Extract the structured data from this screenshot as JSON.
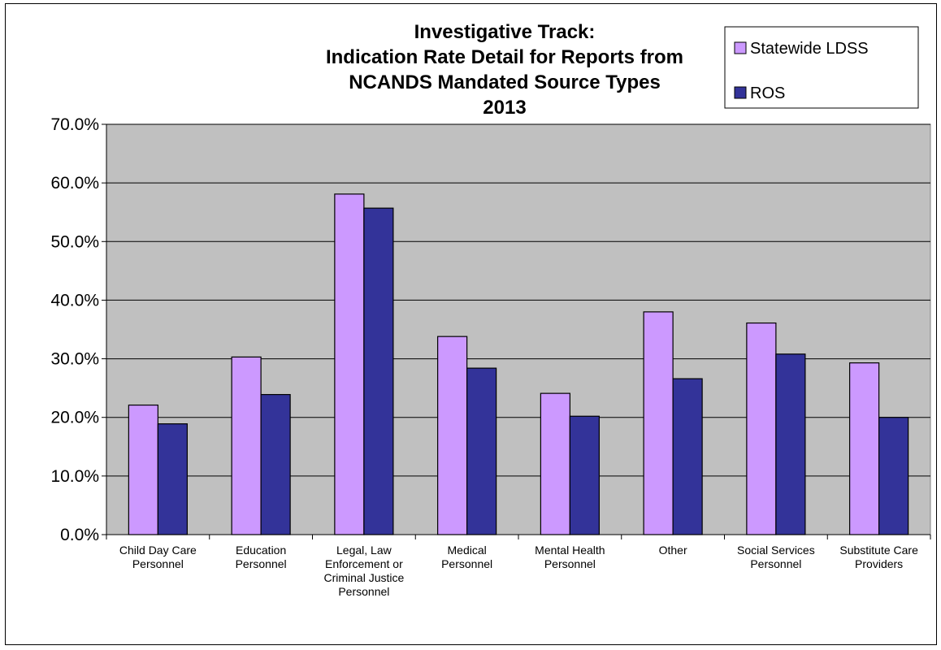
{
  "chart_data": {
    "type": "bar",
    "title_lines": [
      "Investigative Track:",
      "Indication Rate Detail for Reports from",
      "NCANDS Mandated Source Types",
      "2013"
    ],
    "categories": [
      [
        "Child Day Care",
        "Personnel"
      ],
      [
        "Education",
        "Personnel"
      ],
      [
        "Legal, Law",
        "Enforcement or",
        "Criminal Justice",
        "Personnel"
      ],
      [
        "Medical",
        "Personnel"
      ],
      [
        "Mental Health",
        "Personnel"
      ],
      [
        "Other"
      ],
      [
        "Social Services",
        "Personnel"
      ],
      [
        "Substitute Care",
        "Providers"
      ]
    ],
    "series": [
      {
        "name": "Statewide LDSS",
        "color": "#CC99FF",
        "values": [
          22.1,
          30.3,
          58.1,
          33.8,
          24.1,
          38.0,
          36.1,
          29.3
        ]
      },
      {
        "name": "ROS",
        "color": "#333399",
        "values": [
          18.9,
          23.9,
          55.7,
          28.4,
          20.2,
          26.6,
          30.8,
          20.0
        ]
      }
    ],
    "ylim": [
      0,
      70
    ],
    "yticks": [
      "0.0%",
      "10.0%",
      "20.0%",
      "30.0%",
      "40.0%",
      "50.0%",
      "60.0%",
      "70.0%"
    ],
    "xlabel": "",
    "ylabel": "",
    "grid": true,
    "plot_background": "#C0C0C0",
    "legend_position": "top-right"
  }
}
